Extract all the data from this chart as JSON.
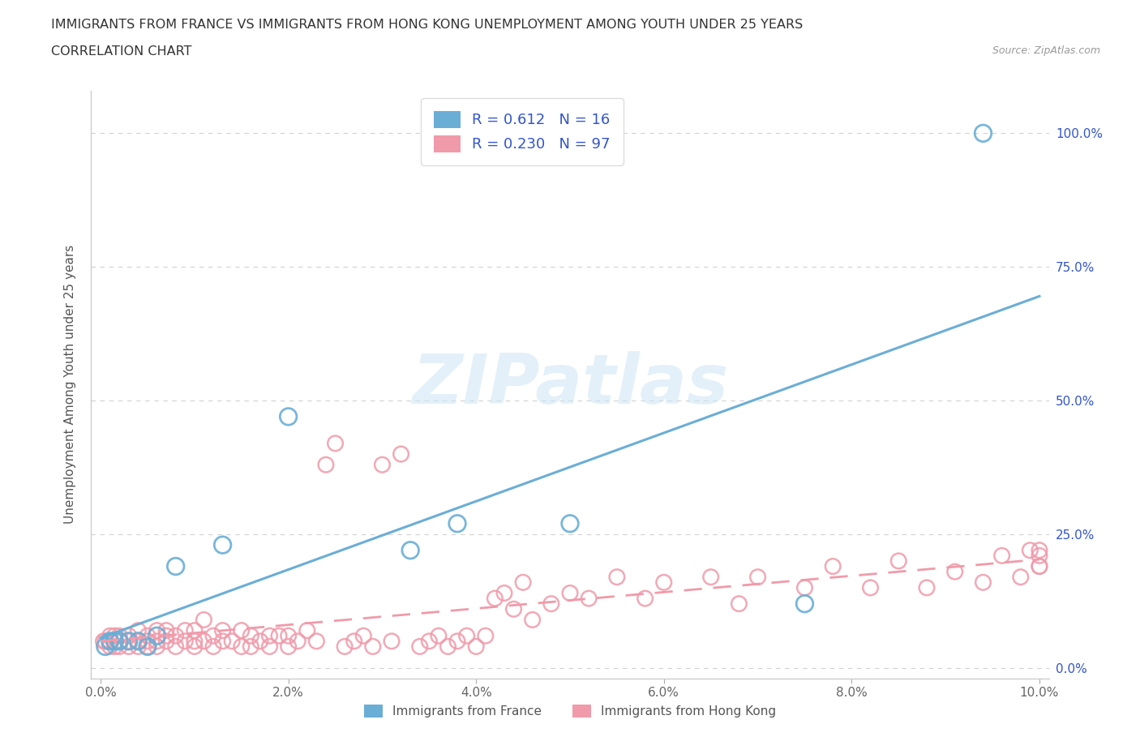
{
  "title_line1": "IMMIGRANTS FROM FRANCE VS IMMIGRANTS FROM HONG KONG UNEMPLOYMENT AMONG YOUTH UNDER 25 YEARS",
  "title_line2": "CORRELATION CHART",
  "source": "Source: ZipAtlas.com",
  "ylabel": "Unemployment Among Youth under 25 years",
  "xlim": [
    -0.001,
    0.101
  ],
  "ylim": [
    -0.02,
    1.08
  ],
  "xticks": [
    0.0,
    0.02,
    0.04,
    0.06,
    0.08,
    0.1
  ],
  "xticklabels": [
    "0.0%",
    "2.0%",
    "4.0%",
    "6.0%",
    "8.0%",
    "10.0%"
  ],
  "yticks": [
    0.0,
    0.25,
    0.5,
    0.75,
    1.0
  ],
  "yticklabels_right": [
    "0.0%",
    "25.0%",
    "50.0%",
    "75.0%",
    "100.0%"
  ],
  "france_color": "#6aaed6",
  "hk_color": "#f09aaa",
  "france_R": 0.612,
  "france_N": 16,
  "hk_R": 0.23,
  "hk_N": 97,
  "watermark": "ZIPatlas",
  "legend_france": "Immigrants from France",
  "legend_hk": "Immigrants from Hong Kong",
  "background_color": "#ffffff",
  "grid_color": "#cccccc",
  "france_x": [
    0.0005,
    0.001,
    0.0015,
    0.002,
    0.003,
    0.004,
    0.005,
    0.006,
    0.008,
    0.013,
    0.02,
    0.033,
    0.038,
    0.05,
    0.075,
    0.094
  ],
  "france_y": [
    0.04,
    0.05,
    0.05,
    0.05,
    0.05,
    0.05,
    0.04,
    0.06,
    0.19,
    0.23,
    0.47,
    0.22,
    0.27,
    0.27,
    0.12,
    1.0
  ],
  "hk_x": [
    0.0003,
    0.0005,
    0.001,
    0.001,
    0.001,
    0.0015,
    0.0015,
    0.002,
    0.002,
    0.002,
    0.003,
    0.003,
    0.003,
    0.004,
    0.004,
    0.004,
    0.005,
    0.005,
    0.005,
    0.006,
    0.006,
    0.006,
    0.007,
    0.007,
    0.007,
    0.008,
    0.008,
    0.009,
    0.009,
    0.01,
    0.01,
    0.01,
    0.011,
    0.011,
    0.012,
    0.012,
    0.013,
    0.013,
    0.014,
    0.015,
    0.015,
    0.016,
    0.016,
    0.017,
    0.018,
    0.018,
    0.019,
    0.02,
    0.02,
    0.021,
    0.022,
    0.023,
    0.024,
    0.025,
    0.026,
    0.027,
    0.028,
    0.029,
    0.03,
    0.031,
    0.032,
    0.034,
    0.035,
    0.036,
    0.037,
    0.038,
    0.039,
    0.04,
    0.041,
    0.042,
    0.043,
    0.044,
    0.045,
    0.046,
    0.048,
    0.05,
    0.052,
    0.055,
    0.058,
    0.06,
    0.065,
    0.068,
    0.07,
    0.075,
    0.078,
    0.082,
    0.085,
    0.088,
    0.091,
    0.094,
    0.096,
    0.098,
    0.099,
    0.1,
    0.1,
    0.1,
    0.1
  ],
  "hk_y": [
    0.05,
    0.05,
    0.04,
    0.05,
    0.06,
    0.04,
    0.06,
    0.04,
    0.05,
    0.06,
    0.04,
    0.05,
    0.06,
    0.04,
    0.05,
    0.07,
    0.04,
    0.05,
    0.06,
    0.04,
    0.05,
    0.07,
    0.05,
    0.06,
    0.07,
    0.04,
    0.06,
    0.05,
    0.07,
    0.04,
    0.05,
    0.07,
    0.05,
    0.09,
    0.04,
    0.06,
    0.05,
    0.07,
    0.05,
    0.04,
    0.07,
    0.04,
    0.06,
    0.05,
    0.04,
    0.06,
    0.06,
    0.04,
    0.06,
    0.05,
    0.07,
    0.05,
    0.38,
    0.42,
    0.04,
    0.05,
    0.06,
    0.04,
    0.38,
    0.05,
    0.4,
    0.04,
    0.05,
    0.06,
    0.04,
    0.05,
    0.06,
    0.04,
    0.06,
    0.13,
    0.14,
    0.11,
    0.16,
    0.09,
    0.12,
    0.14,
    0.13,
    0.17,
    0.13,
    0.16,
    0.17,
    0.12,
    0.17,
    0.15,
    0.19,
    0.15,
    0.2,
    0.15,
    0.18,
    0.16,
    0.21,
    0.17,
    0.22,
    0.19,
    0.21,
    0.19,
    0.22
  ]
}
